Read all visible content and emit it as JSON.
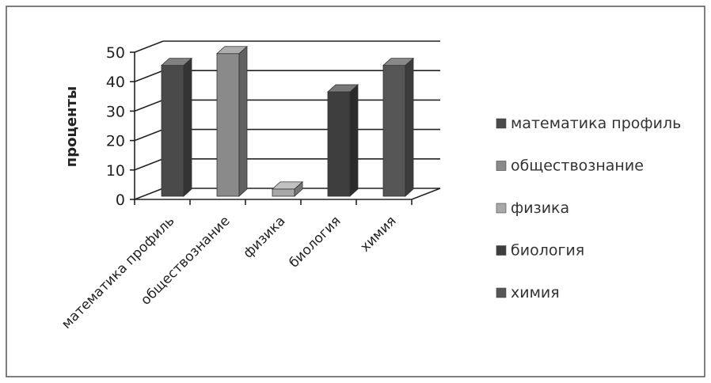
{
  "chart_data": {
    "type": "bar",
    "title": "",
    "xlabel": "",
    "ylabel": "проценты",
    "categories": [
      "математика профиль",
      "обществознание",
      "физика",
      "биология",
      "химия"
    ],
    "values": [
      45,
      49,
      3,
      36,
      45
    ],
    "ylim": [
      0,
      50
    ],
    "yticks": [
      "0",
      "10",
      "20",
      "30",
      "40",
      "50"
    ],
    "grid": true,
    "three_d": true,
    "legend": {
      "position": "right",
      "entries": [
        "математика профиль",
        "обществознание",
        "физика",
        "биология",
        "химия"
      ]
    },
    "colors": [
      "#4a4a4a",
      "#8a8a8a",
      "#a8a8a8",
      "#3e3e3e",
      "#555555"
    ]
  }
}
